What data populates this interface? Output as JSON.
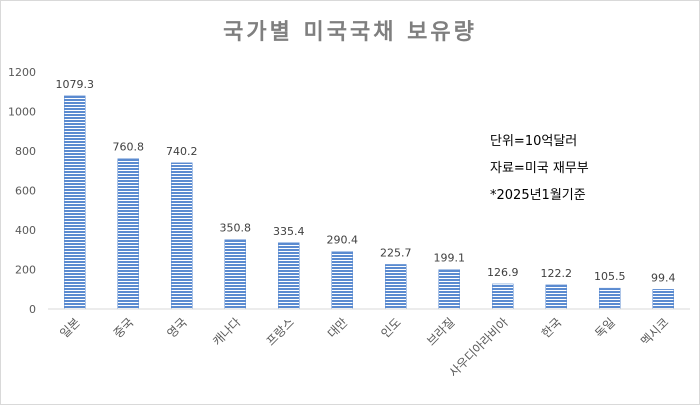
{
  "chart_data": {
    "type": "bar",
    "title": "국가별 미국국채 보유량",
    "categories": [
      "일본",
      "중국",
      "영국",
      "캐나다",
      "프랑스",
      "대만",
      "인도",
      "브라질",
      "사우디아라비아",
      "한국",
      "독일",
      "멕시코"
    ],
    "values": [
      1079.3,
      760.8,
      740.2,
      350.8,
      335.4,
      290.4,
      225.7,
      199.1,
      126.9,
      122.2,
      105.5,
      99.4
    ],
    "data_labels": [
      "1079.3",
      "760.8",
      "740.2",
      "350.8",
      "335.4",
      "290.4",
      "225.7",
      "199.1",
      "126.9",
      "122.2",
      "105.5",
      "99.4"
    ],
    "ylim": [
      0,
      1200
    ],
    "yticks": [
      "0",
      "200",
      "400",
      "600",
      "800",
      "1000",
      "1200"
    ],
    "grid": false,
    "bar_color": "#5b8bd0",
    "bar_stripe_color": "#ffffff"
  },
  "annotations": {
    "unit": "단위=10억달러",
    "source": "자료=미국 재무부",
    "basis": "*2025년1월기준"
  }
}
